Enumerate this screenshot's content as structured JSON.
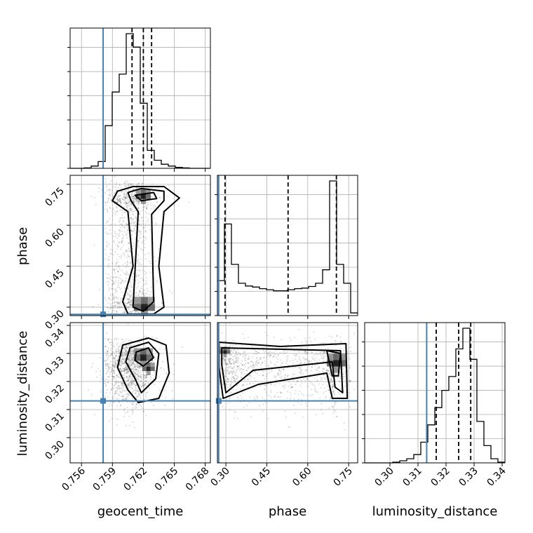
{
  "chart_data": {
    "type": "corner",
    "parameters": [
      "geocent_time",
      "phase",
      "luminosity_distance"
    ],
    "truths": {
      "geocent_time": 0.7581,
      "phase": 0.2736,
      "luminosity_distance": 0.3131
    },
    "truth_color": "#4682b4",
    "quantiles": {
      "geocent_time": [
        0.7609,
        0.762,
        0.7628
      ],
      "phase": [
        0.297,
        0.528,
        0.705
      ],
      "luminosity_distance": [
        0.3165,
        0.3245,
        0.3288
      ]
    },
    "ranges": {
      "geocent_time": [
        0.7549,
        0.7685
      ],
      "phase": [
        0.269,
        0.783
      ],
      "luminosity_distance": [
        0.291,
        0.341
      ]
    },
    "ticks": {
      "geocent_time": [
        0.756,
        0.759,
        0.762,
        0.765,
        0.768
      ],
      "phase": [
        0.3,
        0.45,
        0.6,
        0.75
      ],
      "luminosity_distance": [
        0.3,
        0.31,
        0.32,
        0.33,
        0.34
      ]
    },
    "tick_labels": {
      "geocent_time": [
        "0.756",
        "0.759",
        "0.762",
        "0.765",
        "0.768"
      ],
      "phase": [
        "0.30",
        "0.45",
        "0.60",
        "0.75"
      ],
      "luminosity_distance": [
        "0.30",
        "0.31",
        "0.32",
        "0.33",
        "0.34"
      ]
    },
    "histograms": {
      "geocent_time": {
        "bin_start": 0.7549,
        "bin_width": 0.00068,
        "counts": [
          0,
          0,
          1,
          5,
          15,
          95,
          170,
          210,
          300,
          270,
          145,
          40,
          18,
          9,
          5,
          2,
          1,
          0,
          0,
          0
        ]
      },
      "phase": {
        "bin_start": 0.269,
        "bin_width": 0.0257,
        "counts": [
          65,
          170,
          95,
          60,
          55,
          53,
          50,
          48,
          46,
          46,
          48,
          50,
          51,
          54,
          60,
          85,
          250,
          95,
          60,
          5
        ]
      },
      "luminosity_distance": {
        "bin_start": 0.291,
        "bin_width": 0.0025,
        "counts": [
          0,
          0,
          0,
          0,
          1,
          3,
          6,
          12,
          30,
          55,
          80,
          105,
          125,
          165,
          195,
          150,
          60,
          25,
          6,
          1
        ]
      }
    },
    "grid": true
  }
}
